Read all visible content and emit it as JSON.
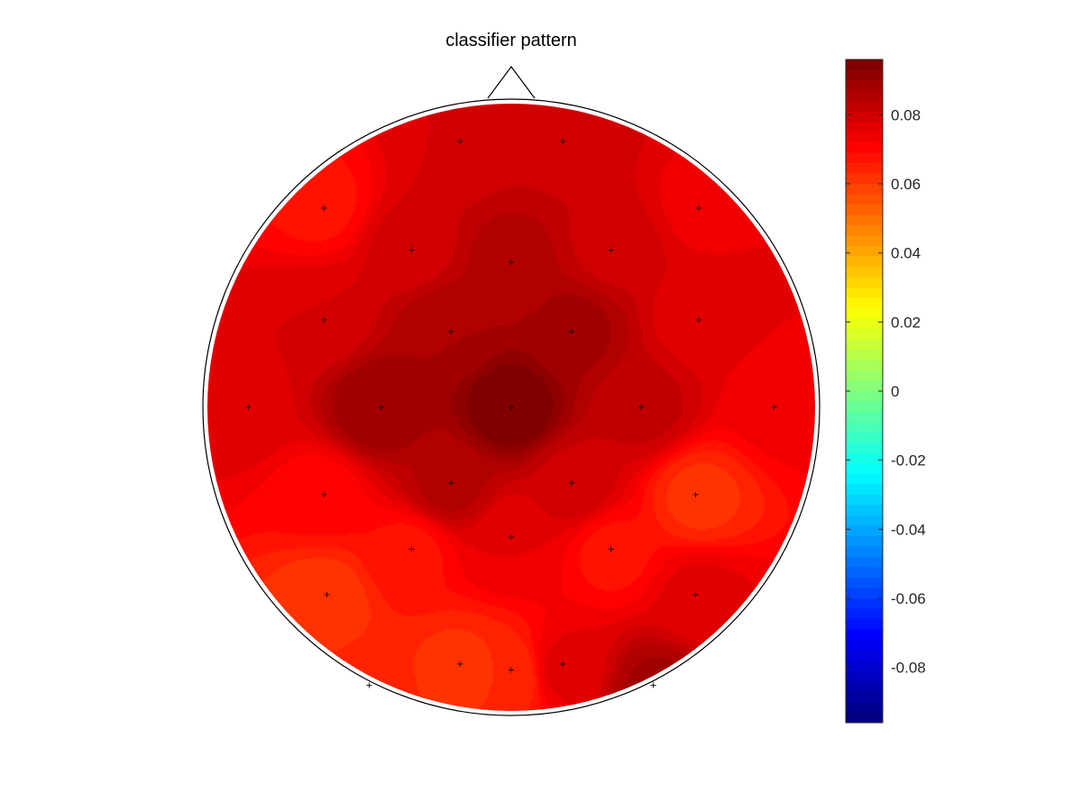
{
  "chart_data": {
    "type": "heatmap",
    "subtype": "eeg-topoplot",
    "title": "classifier pattern",
    "colormap": "jet",
    "clim": [
      -0.096,
      0.096
    ],
    "colorbar": {
      "position": "right",
      "ticks": [
        0.08,
        0.06,
        0.04,
        0.02,
        0,
        -0.02,
        -0.04,
        -0.06,
        -0.08
      ],
      "tick_labels": [
        "0.08",
        "0.06",
        "0.04",
        "0.02",
        "0",
        "-0.02",
        "-0.04",
        "-0.06",
        "-0.08"
      ]
    },
    "head": {
      "nose": "top",
      "electrode_marker": "+"
    },
    "channels": [
      {
        "x": -0.17,
        "y": 0.88,
        "value": 0.078
      },
      {
        "x": 0.17,
        "y": 0.88,
        "value": 0.08
      },
      {
        "x": -0.62,
        "y": 0.66,
        "value": 0.068
      },
      {
        "x": 0.62,
        "y": 0.66,
        "value": 0.074
      },
      {
        "x": -0.33,
        "y": 0.52,
        "value": 0.079
      },
      {
        "x": 0.0,
        "y": 0.48,
        "value": 0.085
      },
      {
        "x": 0.33,
        "y": 0.52,
        "value": 0.08
      },
      {
        "x": -0.62,
        "y": 0.29,
        "value": 0.078
      },
      {
        "x": -0.2,
        "y": 0.25,
        "value": 0.087
      },
      {
        "x": 0.2,
        "y": 0.25,
        "value": 0.088
      },
      {
        "x": 0.62,
        "y": 0.29,
        "value": 0.076
      },
      {
        "x": -0.87,
        "y": 0.0,
        "value": 0.077
      },
      {
        "x": -0.43,
        "y": 0.0,
        "value": 0.09
      },
      {
        "x": 0.0,
        "y": 0.0,
        "value": 0.096
      },
      {
        "x": 0.43,
        "y": 0.0,
        "value": 0.082
      },
      {
        "x": 0.87,
        "y": 0.0,
        "value": 0.073
      },
      {
        "x": -0.62,
        "y": -0.29,
        "value": 0.07
      },
      {
        "x": -0.2,
        "y": -0.25,
        "value": 0.085
      },
      {
        "x": 0.2,
        "y": -0.25,
        "value": 0.08
      },
      {
        "x": 0.61,
        "y": -0.29,
        "value": 0.062
      },
      {
        "x": 0.0,
        "y": -0.43,
        "value": 0.075
      },
      {
        "x": -0.33,
        "y": -0.47,
        "value": 0.068
      },
      {
        "x": 0.33,
        "y": -0.47,
        "value": 0.068
      },
      {
        "x": -0.61,
        "y": -0.62,
        "value": 0.061
      },
      {
        "x": 0.61,
        "y": -0.62,
        "value": 0.076
      },
      {
        "x": -0.17,
        "y": -0.85,
        "value": 0.062
      },
      {
        "x": 0.0,
        "y": -0.87,
        "value": 0.063
      },
      {
        "x": 0.17,
        "y": -0.85,
        "value": 0.076
      },
      {
        "x": -0.47,
        "y": -0.92,
        "value": 0.064
      },
      {
        "x": 0.47,
        "y": -0.92,
        "value": 0.088
      }
    ]
  }
}
